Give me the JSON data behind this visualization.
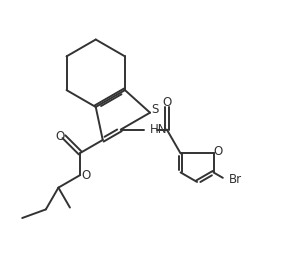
{
  "bg_color": "#ffffff",
  "line_color": "#333333",
  "bond_lw": 1.4,
  "figsize": [
    3.08,
    2.63
  ],
  "dpi": 100,
  "S_label": "S",
  "O_labels": [
    "O",
    "O",
    "O",
    "O"
  ],
  "HN_label": "HN",
  "Br_label": "Br",
  "font_size": 8.5
}
